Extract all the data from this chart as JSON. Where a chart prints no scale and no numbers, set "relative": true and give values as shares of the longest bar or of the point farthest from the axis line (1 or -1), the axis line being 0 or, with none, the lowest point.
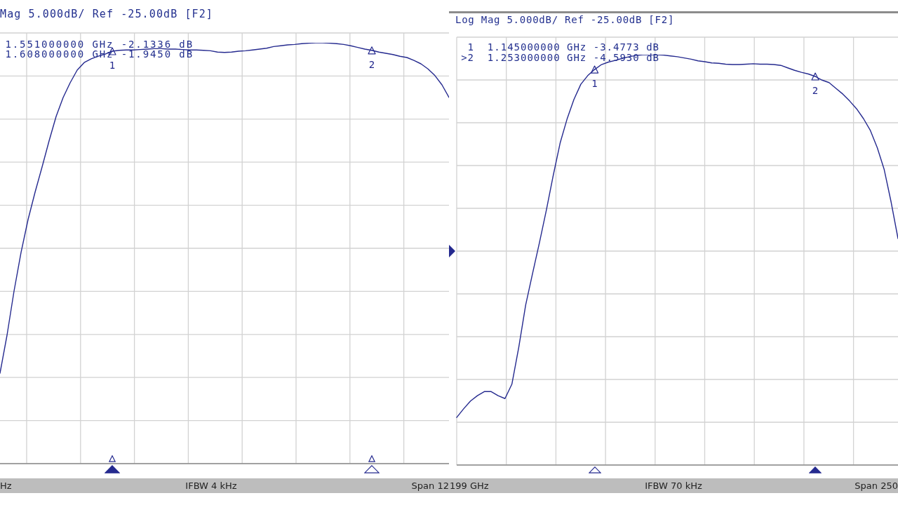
{
  "chart_data": [
    {
      "type": "line",
      "title": "Mag 5.000dB/ Ref -25.00dB [F2]",
      "relative": true,
      "grid": true,
      "categories": [
        null,
        null,
        null,
        null,
        null,
        null,
        null,
        null,
        null,
        null,
        null,
        null,
        null,
        null,
        null,
        null,
        null,
        null,
        null,
        null,
        null,
        null,
        null,
        null,
        null,
        null,
        null,
        null,
        null,
        null,
        null,
        null,
        null,
        null,
        null,
        null,
        null,
        null,
        null,
        null,
        null,
        null,
        null,
        null,
        null,
        null,
        null,
        null,
        null,
        null,
        null,
        null,
        null,
        null,
        null,
        null,
        null,
        null,
        null,
        null,
        null,
        null,
        null,
        null,
        null
      ],
      "series": [
        {
          "color": "#252a8f",
          "values": [
            0.215,
            0.305,
            0.41,
            0.502,
            0.58,
            0.645,
            0.705,
            0.767,
            0.825,
            0.87,
            0.905,
            0.935,
            0.953,
            0.962,
            0.968,
            0.973,
            0.98,
            0.982,
            0.983,
            0.983,
            0.984,
            0.985,
            0.986,
            0.986,
            0.985,
            0.985,
            0.984,
            0.983,
            0.983,
            0.982,
            0.981,
            0.978,
            0.977,
            0.978,
            0.98,
            0.981,
            0.983,
            0.985,
            0.987,
            0.991,
            0.993,
            0.995,
            0.996,
            0.998,
            0.999,
            1,
            1,
            0.999,
            0.998,
            0.996,
            0.993,
            0.989,
            0.985,
            0.982,
            0.978,
            0.975,
            0.972,
            0.968,
            0.965,
            0.958,
            0.95,
            0.938,
            0.922,
            0.9,
            0.87
          ]
        },
        {
          "marker": "triangle",
          "color": "#252a8f",
          "values": [
            null,
            null,
            null,
            null,
            null,
            null,
            null,
            null,
            null,
            null,
            null,
            null,
            null,
            null,
            null,
            null,
            0.98,
            null,
            null,
            null,
            null,
            null,
            null,
            null,
            null,
            null,
            null,
            null,
            null,
            null,
            null,
            null,
            null,
            null,
            null,
            null,
            null,
            null,
            null,
            null,
            null,
            null,
            null,
            null,
            null,
            null,
            null,
            null,
            null,
            null,
            null,
            null,
            null,
            null,
            null,
            null,
            null,
            null,
            null,
            null,
            null,
            null,
            null,
            null,
            null
          ]
        },
        {
          "marker": "triangle",
          "color": "#252a8f",
          "values": [
            null,
            null,
            null,
            null,
            null,
            null,
            null,
            null,
            null,
            null,
            null,
            null,
            null,
            null,
            null,
            null,
            null,
            null,
            null,
            null,
            null,
            null,
            null,
            null,
            null,
            null,
            null,
            null,
            null,
            null,
            null,
            null,
            null,
            null,
            null,
            null,
            null,
            null,
            null,
            null,
            null,
            null,
            null,
            null,
            null,
            null,
            null,
            null,
            null,
            null,
            null,
            null,
            null,
            0.982,
            null,
            null,
            null,
            null,
            null,
            null,
            null,
            null,
            null,
            null,
            null
          ]
        }
      ],
      "annotations": [
        "1.551000000 GHz -2.1336 dB",
        "1.608000000 GHz -1.9450 dB",
        "1",
        "2",
        "Hz",
        "IFBW 4 kHz",
        "Span 12"
      ]
    },
    {
      "type": "line",
      "title": "Log Mag 5.000dB/ Ref -25.00dB [F2]",
      "relative": true,
      "grid": true,
      "categories": [
        null,
        null,
        null,
        null,
        null,
        null,
        null,
        null,
        null,
        null,
        null,
        null,
        null,
        null,
        null,
        null,
        null,
        null,
        null,
        null,
        null,
        null,
        null,
        null,
        null,
        null,
        null,
        null,
        null,
        null,
        null,
        null,
        null,
        null,
        null,
        null,
        null,
        null,
        null,
        null,
        null,
        null,
        null,
        null,
        null,
        null,
        null,
        null,
        null,
        null,
        null,
        null,
        null,
        null,
        null,
        null,
        null,
        null,
        null,
        null,
        null,
        null,
        null,
        null,
        null
      ],
      "series": [
        {
          "color": "#252a8f",
          "values": [
            0.116,
            0.137,
            0.156,
            0.169,
            0.179,
            0.179,
            0.169,
            0.162,
            0.197,
            0.287,
            0.39,
            0.467,
            0.542,
            0.621,
            0.706,
            0.785,
            0.843,
            0.891,
            0.928,
            0.949,
            0.964,
            0.976,
            0.982,
            0.986,
            0.991,
            0.995,
            0.998,
            1,
            1,
            1,
            0.999,
            0.997,
            0.995,
            0.992,
            0.989,
            0.985,
            0.983,
            0.98,
            0.979,
            0.977,
            0.976,
            0.976,
            0.977,
            0.978,
            0.977,
            0.977,
            0.976,
            0.974,
            0.968,
            0.962,
            0.957,
            0.953,
            0.947,
            0.938,
            0.932,
            0.918,
            0.904,
            0.887,
            0.868,
            0.844,
            0.815,
            0.773,
            0.72,
            0.641,
            0.552
          ]
        },
        {
          "marker": "triangle",
          "color": "#252a8f",
          "values": [
            null,
            null,
            null,
            null,
            null,
            null,
            null,
            null,
            null,
            null,
            null,
            null,
            null,
            null,
            null,
            null,
            null,
            null,
            null,
            null,
            0.964,
            null,
            null,
            null,
            null,
            null,
            null,
            null,
            null,
            null,
            null,
            null,
            null,
            null,
            null,
            null,
            null,
            null,
            null,
            null,
            null,
            null,
            null,
            null,
            null,
            null,
            null,
            null,
            null,
            null,
            null,
            null,
            null,
            null,
            null,
            null,
            null,
            null,
            null,
            null,
            null,
            null,
            null,
            null,
            null
          ]
        },
        {
          "marker": "triangle",
          "color": "#252a8f",
          "values": [
            null,
            null,
            null,
            null,
            null,
            null,
            null,
            null,
            null,
            null,
            null,
            null,
            null,
            null,
            null,
            null,
            null,
            null,
            null,
            null,
            null,
            null,
            null,
            null,
            null,
            null,
            null,
            null,
            null,
            null,
            null,
            null,
            null,
            null,
            null,
            null,
            null,
            null,
            null,
            null,
            null,
            null,
            null,
            null,
            null,
            null,
            null,
            null,
            null,
            null,
            null,
            null,
            0.947,
            null,
            null,
            null,
            null,
            null,
            null,
            null,
            null,
            null,
            null,
            null,
            null
          ]
        }
      ],
      "annotations": [
        "1  1.145000000 GHz -3.4773 dB",
        ">2  1.253000000 GHz -4.5930 dB",
        "1",
        "2",
        "199 GHz",
        "IFBW 70 kHz",
        "Span 250"
      ]
    }
  ]
}
